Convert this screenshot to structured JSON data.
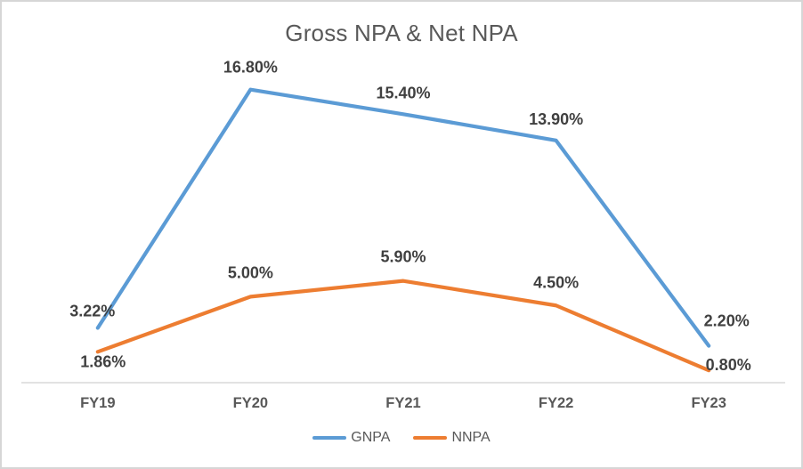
{
  "chart": {
    "title": "Gross NPA & Net NPA"
  },
  "chart_data": {
    "type": "line",
    "title": "Gross NPA & Net NPA",
    "xlabel": "",
    "ylabel": "",
    "categories": [
      "FY19",
      "FY20",
      "FY21",
      "FY22",
      "FY23"
    ],
    "series": [
      {
        "name": "GNPA",
        "color": "#5B9BD5",
        "values": [
          3.22,
          16.8,
          15.4,
          13.9,
          2.2
        ],
        "labels": [
          "3.22%",
          "16.80%",
          "15.40%",
          "13.90%",
          "2.20%"
        ]
      },
      {
        "name": "NNPA",
        "color": "#ED7D31",
        "values": [
          1.86,
          5.0,
          5.9,
          4.5,
          0.8
        ],
        "labels": [
          "1.86%",
          "5.00%",
          "5.90%",
          "4.50%",
          "0.80%"
        ]
      }
    ],
    "ylim": [
      0,
      18
    ],
    "grid": false,
    "y_axis_visible": false,
    "data_labels": true,
    "legend_position": "bottom"
  },
  "colors": {
    "title_text": "#595959",
    "data_label": "#404040",
    "axis_label": "#595959",
    "axis_line": "#d9d9d9",
    "border": "#d6d6d6",
    "background": "#ffffff"
  }
}
